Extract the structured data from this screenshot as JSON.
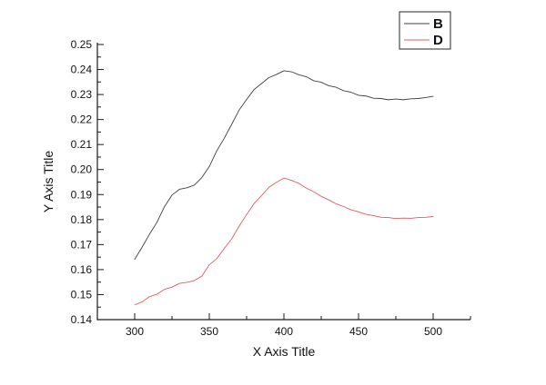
{
  "chart_data": {
    "type": "line",
    "title": "",
    "xlabel": "X Axis Title",
    "ylabel": "Y Axis Title",
    "xlim": [
      275,
      525
    ],
    "ylim": [
      0.14,
      0.25
    ],
    "grid": false,
    "legend": {
      "position": "top-right",
      "border": true,
      "entries": [
        "B",
        "D"
      ]
    },
    "x_ticks": [
      300,
      350,
      400,
      450,
      500
    ],
    "x_tick_labels": [
      "300",
      "350",
      "400",
      "450",
      "500"
    ],
    "x_minor_ticks": [
      325,
      375,
      425,
      475,
      525
    ],
    "y_ticks": [
      0.14,
      0.15,
      0.16,
      0.17,
      0.18,
      0.19,
      0.2,
      0.21,
      0.22,
      0.23,
      0.24,
      0.25
    ],
    "y_tick_labels": [
      "0.14",
      "0.15",
      "0.16",
      "0.17",
      "0.18",
      "0.19",
      "0.20",
      "0.21",
      "0.22",
      "0.23",
      "0.24",
      "0.25"
    ],
    "y_minor_ticks": [
      0.145,
      0.155,
      0.165,
      0.175,
      0.185,
      0.195,
      0.205,
      0.215,
      0.225,
      0.235,
      0.245
    ],
    "x": [
      300,
      305,
      310,
      315,
      320,
      325,
      330,
      335,
      340,
      345,
      350,
      355,
      360,
      365,
      370,
      375,
      380,
      385,
      390,
      395,
      400,
      405,
      410,
      415,
      420,
      425,
      430,
      435,
      440,
      445,
      450,
      455,
      460,
      465,
      470,
      475,
      480,
      485,
      490,
      495,
      500
    ],
    "series": [
      {
        "name": "B",
        "color": "#3f3f3f",
        "values": [
          0.1641,
          0.169,
          0.1742,
          0.179,
          0.1852,
          0.1898,
          0.1921,
          0.1927,
          0.1938,
          0.1968,
          0.2012,
          0.2075,
          0.2125,
          0.2181,
          0.2238,
          0.228,
          0.232,
          0.2344,
          0.2368,
          0.238,
          0.2395,
          0.2391,
          0.2379,
          0.2371,
          0.2355,
          0.2349,
          0.2335,
          0.2329,
          0.2315,
          0.2309,
          0.2297,
          0.2294,
          0.2285,
          0.2284,
          0.2279,
          0.2282,
          0.2279,
          0.2283,
          0.2284,
          0.2288,
          0.2293
        ]
      },
      {
        "name": "D",
        "color": "#e05c5c",
        "values": [
          0.1459,
          0.1471,
          0.1492,
          0.1502,
          0.1521,
          0.153,
          0.1545,
          0.1549,
          0.1556,
          0.1574,
          0.1619,
          0.1644,
          0.1684,
          0.1723,
          0.1774,
          0.182,
          0.1864,
          0.1896,
          0.1929,
          0.1949,
          0.1966,
          0.1957,
          0.1945,
          0.1926,
          0.1911,
          0.1893,
          0.1879,
          0.1863,
          0.1852,
          0.1839,
          0.1831,
          0.1821,
          0.1816,
          0.1809,
          0.1808,
          0.1804,
          0.1806,
          0.1805,
          0.1808,
          0.1809,
          0.1812
        ]
      }
    ]
  }
}
